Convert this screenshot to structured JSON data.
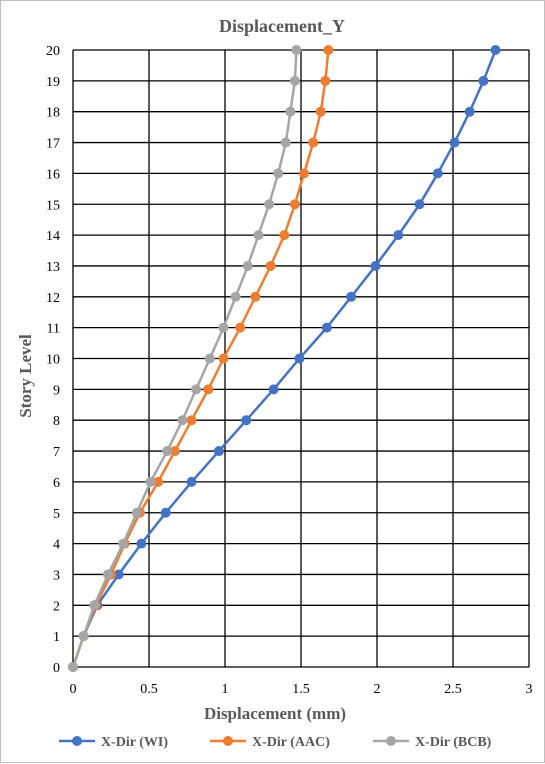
{
  "chart_data": {
    "type": "line",
    "title": "Displacement_Y",
    "xlabel": "Displacement (mm)",
    "ylabel": "Story Level",
    "xlim": [
      0,
      3
    ],
    "ylim": [
      0,
      20
    ],
    "x_ticks": [
      "0",
      "0.5",
      "1",
      "1.5",
      "2",
      "2.5",
      "3"
    ],
    "y_ticks": [
      "0",
      "1",
      "2",
      "3",
      "4",
      "5",
      "6",
      "7",
      "8",
      "9",
      "10",
      "11",
      "12",
      "13",
      "14",
      "15",
      "16",
      "17",
      "18",
      "19",
      "20"
    ],
    "grid": true,
    "legend_position": "bottom",
    "story_levels": [
      0,
      1,
      2,
      3,
      4,
      5,
      6,
      7,
      8,
      9,
      10,
      11,
      12,
      13,
      14,
      15,
      16,
      17,
      18,
      19,
      20
    ],
    "series": [
      {
        "name": "X-Dir (WI)",
        "color": "#4472c4",
        "values": [
          0,
          0.07,
          0.16,
          0.3,
          0.45,
          0.61,
          0.78,
          0.96,
          1.14,
          1.32,
          1.49,
          1.67,
          1.83,
          1.99,
          2.14,
          2.28,
          2.4,
          2.51,
          2.61,
          2.7,
          2.78
        ]
      },
      {
        "name": "X-Dir (AAC)",
        "color": "#ed7d31",
        "values": [
          0,
          0.07,
          0.15,
          0.25,
          0.34,
          0.44,
          0.56,
          0.67,
          0.78,
          0.89,
          0.99,
          1.1,
          1.2,
          1.3,
          1.39,
          1.46,
          1.52,
          1.58,
          1.63,
          1.66,
          1.68
        ]
      },
      {
        "name": "X-Dir (BCB)",
        "color": "#a5a5a5",
        "values": [
          0,
          0.07,
          0.14,
          0.23,
          0.33,
          0.42,
          0.51,
          0.62,
          0.72,
          0.81,
          0.9,
          0.99,
          1.07,
          1.15,
          1.22,
          1.29,
          1.35,
          1.4,
          1.43,
          1.46,
          1.47
        ]
      }
    ]
  }
}
